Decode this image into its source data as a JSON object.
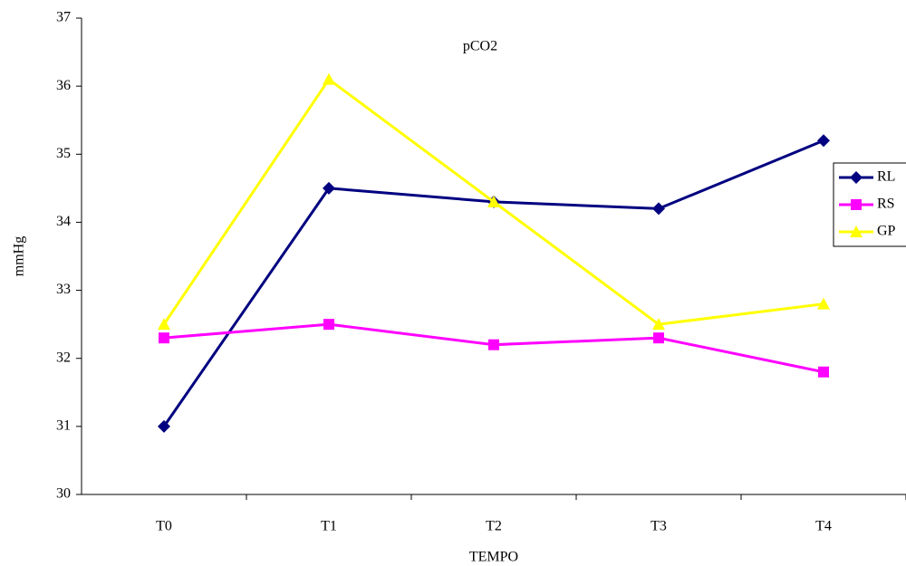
{
  "chart_data": {
    "type": "line",
    "title": "pCO2",
    "x_label": "TEMPO",
    "y_label": "mmHg",
    "categories": [
      "T0",
      "T1",
      "T2",
      "T3",
      "T4"
    ],
    "series": [
      {
        "name": "RL",
        "color": "#000080",
        "marker": "diamond",
        "values": [
          31.0,
          34.5,
          34.3,
          34.2,
          35.2
        ]
      },
      {
        "name": "RS",
        "color": "#ff00ff",
        "marker": "square",
        "values": [
          32.3,
          32.5,
          32.2,
          32.3,
          31.8
        ]
      },
      {
        "name": "GP",
        "color": "#ffff00",
        "marker": "triangle",
        "values": [
          32.5,
          36.1,
          34.3,
          32.5,
          32.8
        ]
      }
    ],
    "ylim": [
      30,
      37
    ],
    "yticks": [
      30,
      31,
      32,
      33,
      34,
      35,
      36,
      37
    ],
    "grid": false,
    "legend": "right"
  }
}
